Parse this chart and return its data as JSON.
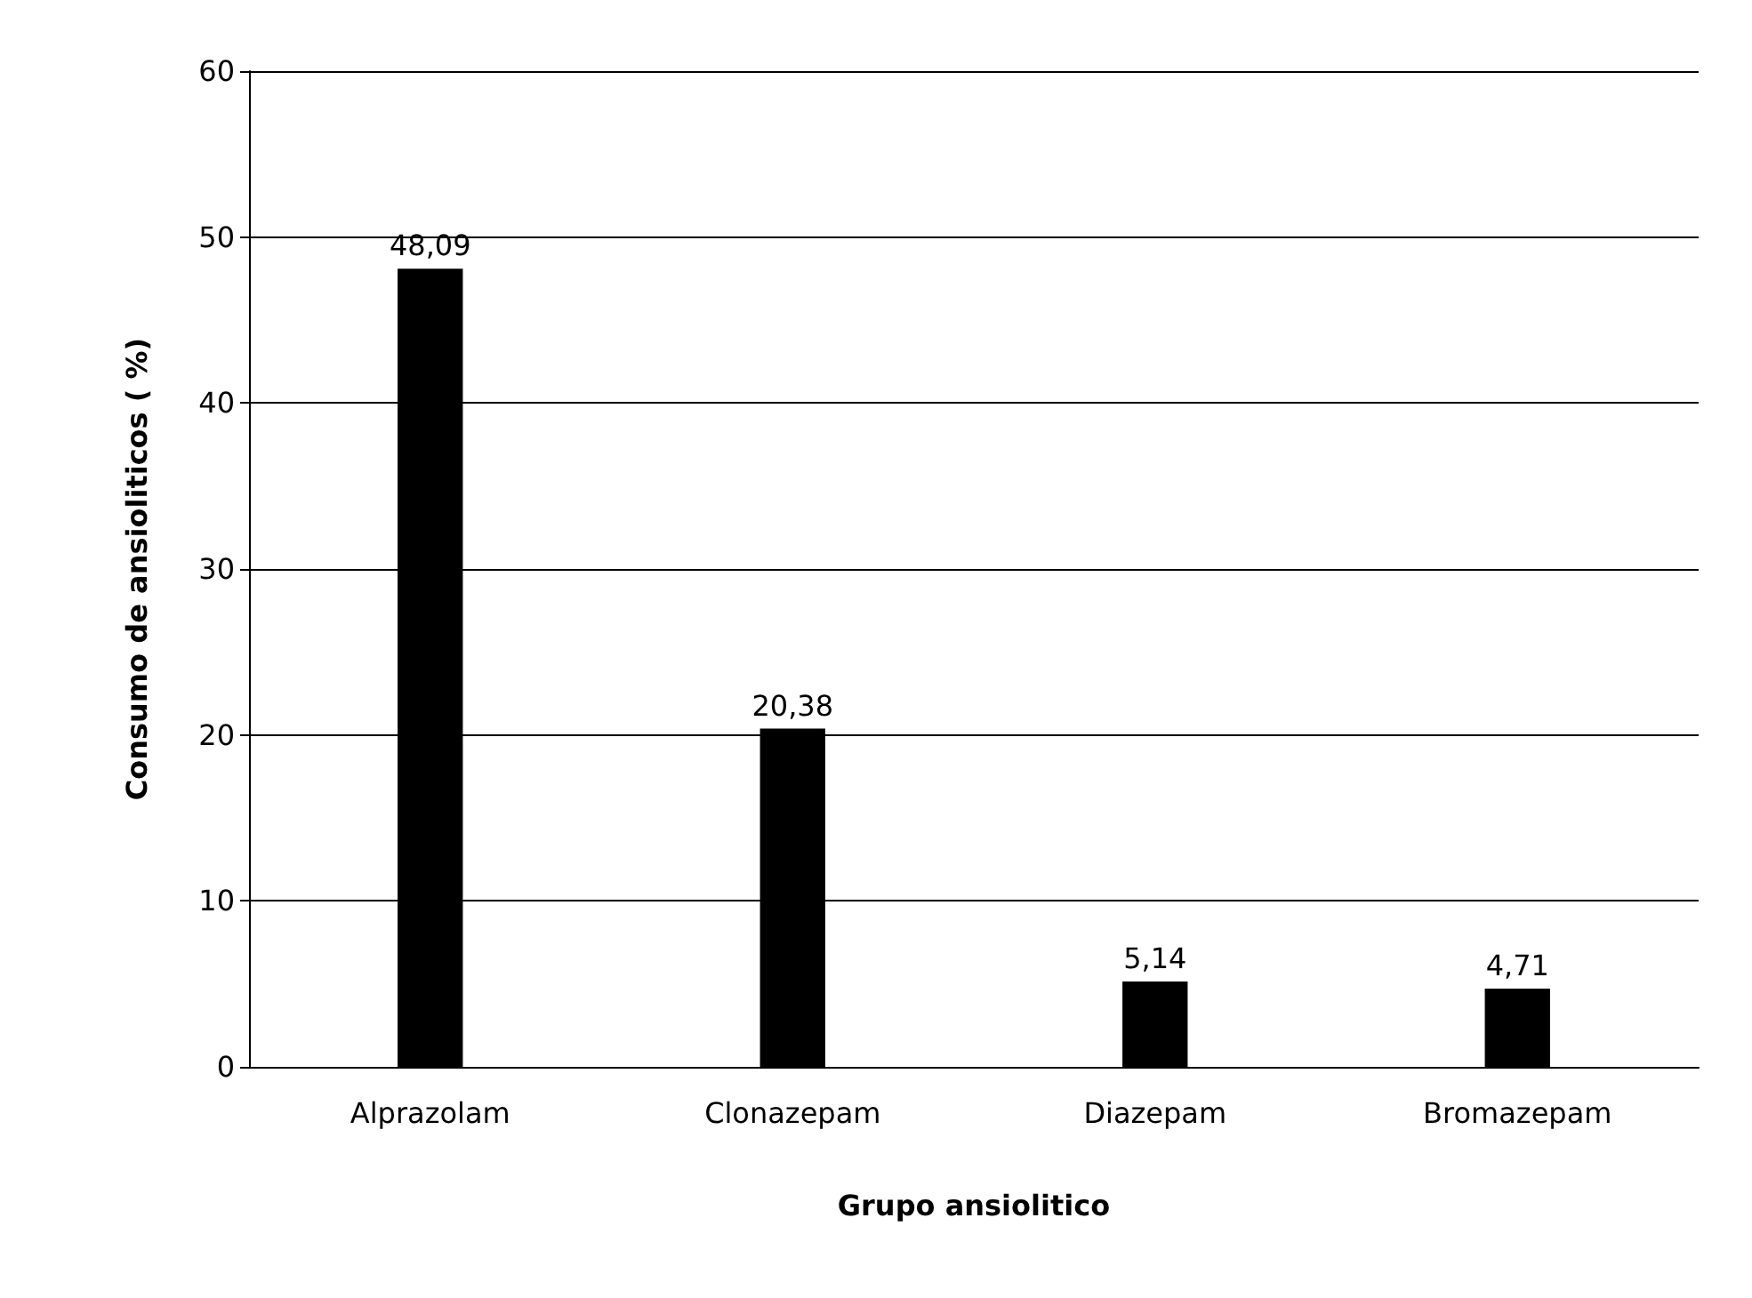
{
  "chart_data": {
    "type": "bar",
    "xlabel": "Grupo ansiolitico",
    "ylabel": "Consumo de ansioliticos ( %)",
    "categories": [
      "Alprazolam",
      "Clonazepam",
      "Diazepam",
      "Bromazepam"
    ],
    "values": [
      48.09,
      20.38,
      5.14,
      4.71
    ],
    "value_labels": [
      "48,09",
      "20,38",
      "5,14",
      "4,71"
    ],
    "color": "#000000",
    "ylim": [
      0,
      60
    ],
    "yticks": [
      0,
      10,
      20,
      30,
      40,
      50,
      60
    ],
    "grid": true
  }
}
